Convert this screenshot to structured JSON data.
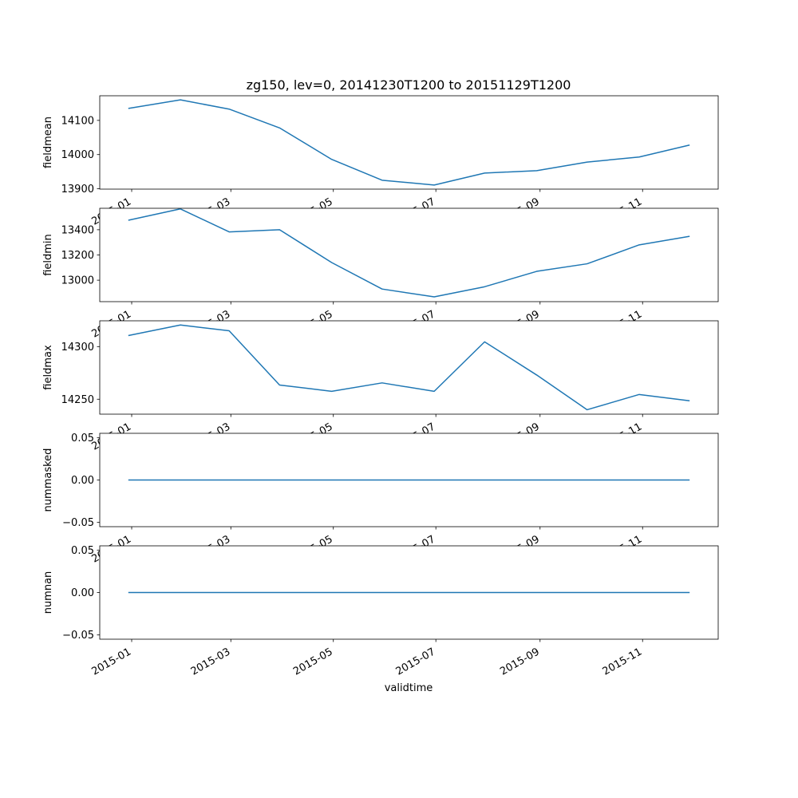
{
  "chart_data": {
    "type": "line",
    "title": "zg150, lev=0, 20141230T1200 to 20151129T1200",
    "xlabel": "validtime",
    "x": [
      "2014-12-30",
      "2015-01-30",
      "2015-02-28",
      "2015-03-30",
      "2015-04-30",
      "2015-05-30",
      "2015-06-30",
      "2015-07-30",
      "2015-08-30",
      "2015-09-29",
      "2015-10-30",
      "2015-11-29"
    ],
    "x_ticks": [
      "2015-01-01",
      "2015-03-01",
      "2015-05-01",
      "2015-07-01",
      "2015-09-01",
      "2015-11-01"
    ],
    "x_tick_labels": [
      "2015-01",
      "2015-03",
      "2015-05",
      "2015-07",
      "2015-09",
      "2015-11"
    ],
    "xlim": [
      "2014-12-13",
      "2015-12-16"
    ],
    "color": "#1f77b4",
    "panels": [
      {
        "ylabel": "fieldmean",
        "ylim": [
          13899,
          14172
        ],
        "yticks": [
          13900,
          14000,
          14100
        ],
        "ytick_labels": [
          "13900",
          "14000",
          "14100"
        ],
        "values": [
          14135,
          14160,
          14133,
          14078,
          13986,
          13925,
          13911,
          13946,
          13953,
          13978,
          13993,
          14028
        ]
      },
      {
        "ylabel": "fieldmin",
        "ylim": [
          12830,
          13570
        ],
        "yticks": [
          13000,
          13200,
          13400
        ],
        "ytick_labels": [
          "13000",
          "13200",
          "13400"
        ],
        "values": [
          13475,
          13565,
          13383,
          13400,
          13140,
          12930,
          12868,
          12948,
          13070,
          13130,
          13280,
          13348
        ]
      },
      {
        "ylabel": "fieldmax",
        "ylim": [
          14235.8,
          14324.5
        ],
        "yticks": [
          14250,
          14300
        ],
        "ytick_labels": [
          "14250",
          "14300"
        ],
        "values": [
          14310.5,
          14320.5,
          14315,
          14263.5,
          14257.5,
          14265.5,
          14257.5,
          14304.5,
          14273,
          14240,
          14254.5,
          14248.5
        ]
      },
      {
        "ylabel": "nummasked",
        "ylim": [
          -0.055,
          0.055
        ],
        "yticks": [
          -0.05,
          0.0,
          0.05
        ],
        "ytick_labels": [
          "−0.05",
          "0.00",
          "0.05"
        ],
        "values": [
          0,
          0,
          0,
          0,
          0,
          0,
          0,
          0,
          0,
          0,
          0,
          0
        ]
      },
      {
        "ylabel": "numnan",
        "ylim": [
          -0.055,
          0.055
        ],
        "yticks": [
          -0.05,
          0.0,
          0.05
        ],
        "ytick_labels": [
          "−0.05",
          "0.00",
          "0.05"
        ],
        "values": [
          0,
          0,
          0,
          0,
          0,
          0,
          0,
          0,
          0,
          0,
          0,
          0
        ]
      }
    ]
  }
}
